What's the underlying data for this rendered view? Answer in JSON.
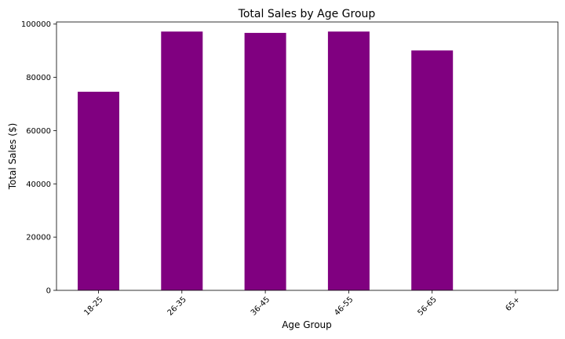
{
  "chart_data": {
    "type": "bar",
    "title": "Total Sales by Age Group",
    "xlabel": "Age Group",
    "ylabel": "Total Sales ($)",
    "categories": [
      "18-25",
      "26-35",
      "36-45",
      "46-55",
      "56-65",
      "65+"
    ],
    "values": [
      74600,
      97200,
      96700,
      97200,
      90100,
      0
    ],
    "ylim": [
      0,
      100800
    ],
    "yticks": [
      0,
      20000,
      40000,
      60000,
      80000,
      100000
    ],
    "bar_color": "#800080",
    "grid": false,
    "legend": false
  }
}
